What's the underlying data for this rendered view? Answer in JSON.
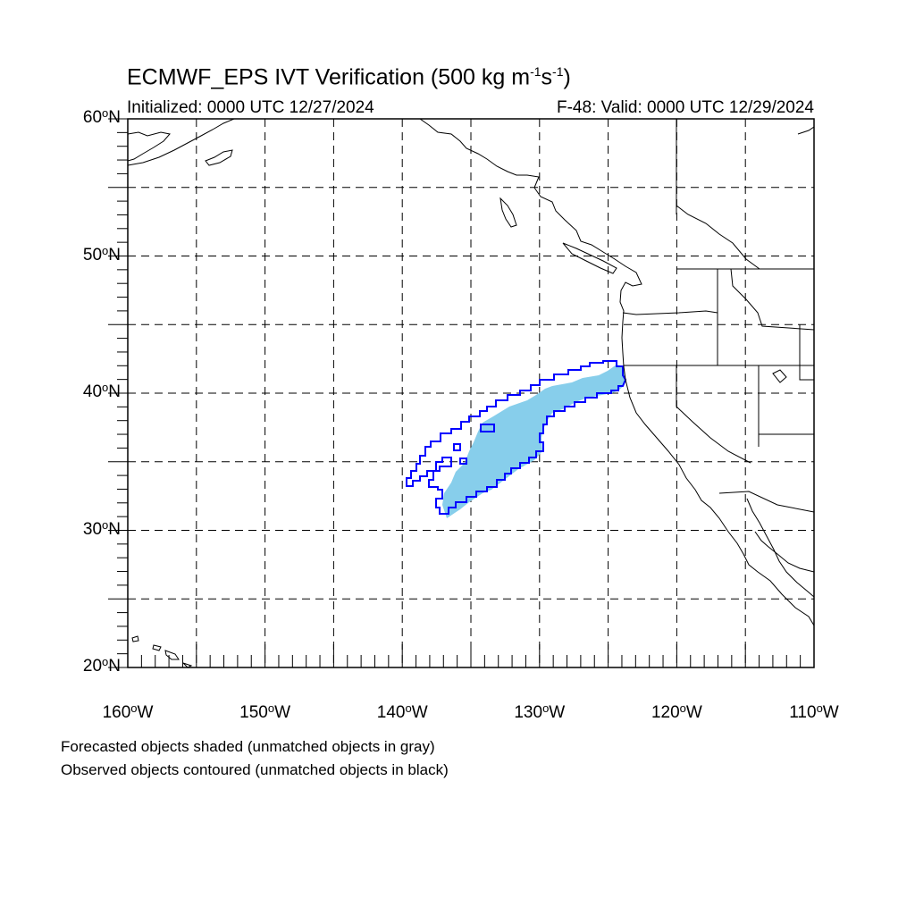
{
  "title": {
    "main": "ECMWF_EPS IVT Verification (500 kg m",
    "sup1": "-1",
    "mid": "s",
    "sup2": "-1",
    "end": ")"
  },
  "subtitle": {
    "initialized": "Initialized: 0000 UTC 12/27/2024",
    "valid": "F-48: Valid: 0000 UTC 12/29/2024"
  },
  "axes": {
    "lat_range": [
      20,
      60
    ],
    "lon_range": [
      -160,
      -110
    ],
    "lat_labels": [
      {
        "value": 60,
        "text": "60",
        "suffix": "N"
      },
      {
        "value": 50,
        "text": "50",
        "suffix": "N"
      },
      {
        "value": 40,
        "text": "40",
        "suffix": "N"
      },
      {
        "value": 30,
        "text": "30",
        "suffix": "N"
      },
      {
        "value": 20,
        "text": "20",
        "suffix": "N"
      }
    ],
    "lon_labels": [
      {
        "value": -160,
        "text": "160",
        "suffix": "W"
      },
      {
        "value": -150,
        "text": "150",
        "suffix": "W"
      },
      {
        "value": -140,
        "text": "140",
        "suffix": "W"
      },
      {
        "value": -130,
        "text": "130",
        "suffix": "W"
      },
      {
        "value": -120,
        "text": "120",
        "suffix": "W"
      },
      {
        "value": -110,
        "text": "110",
        "suffix": "W"
      }
    ],
    "degree_symbol": "o",
    "gridline_style": "dashed"
  },
  "colors": {
    "forecast_fill": "#87ceeb",
    "observed_contour": "#0000ff",
    "coastline": "#000000"
  },
  "footer": {
    "line1": "Forecasted objects shaded (unmatched objects in gray)",
    "line2": "Observed objects contoured (unmatched objects in black)"
  }
}
